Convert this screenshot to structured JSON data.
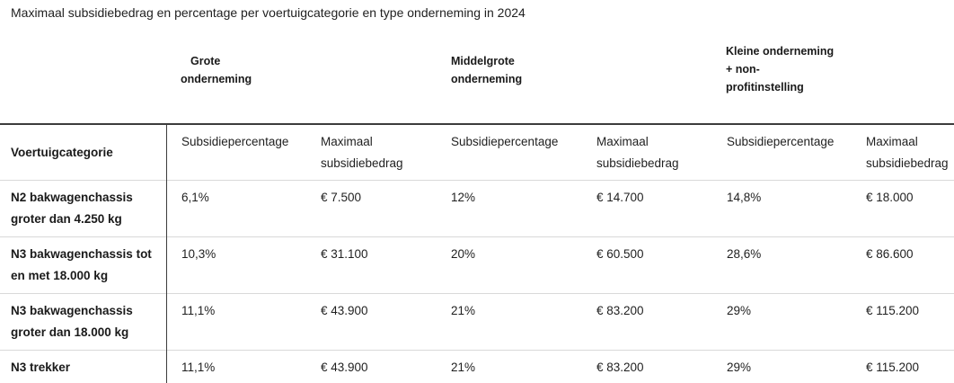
{
  "caption": "Maximaal subsidiebedrag en percentage per voertuigcategorie en type onderneming in 2024",
  "groups": [
    {
      "line1": "Grote",
      "line2": "onderneming",
      "line3": ""
    },
    {
      "line1": "Middelgrote",
      "line2": "onderneming",
      "line3": ""
    },
    {
      "line1": "Kleine onderneming",
      "line2": "+ non-",
      "line3": "profitinstelling"
    }
  ],
  "header": {
    "category": "Voertuigcategorie",
    "pct": "Subsidiepercentage",
    "max_line1": "Maximaal",
    "max_line2": "subsidiebedrag"
  },
  "rows": [
    {
      "line1": "N2 bakwagenchassis",
      "line2": "groter dan 4.250 kg",
      "values": [
        "6,1%",
        "€ 7.500",
        "12%",
        "€ 14.700",
        "14,8%",
        "€ 18.000"
      ]
    },
    {
      "line1": "N3 bakwagenchassis tot",
      "line2": "en met 18.000 kg",
      "values": [
        "10,3%",
        "€ 31.100",
        "20%",
        "€ 60.500",
        "28,6%",
        "€ 86.600"
      ]
    },
    {
      "line1": "N3 bakwagenchassis",
      "line2": "groter dan 18.000 kg",
      "values": [
        "11,1%",
        "€ 43.900",
        "21%",
        "€ 83.200",
        "29%",
        "€ 115.200"
      ]
    },
    {
      "line1": "N3 trekker",
      "line2": "",
      "values": [
        "11,1%",
        "€ 43.900",
        "21%",
        "€ 83.200",
        "29%",
        "€ 115.200"
      ]
    }
  ]
}
